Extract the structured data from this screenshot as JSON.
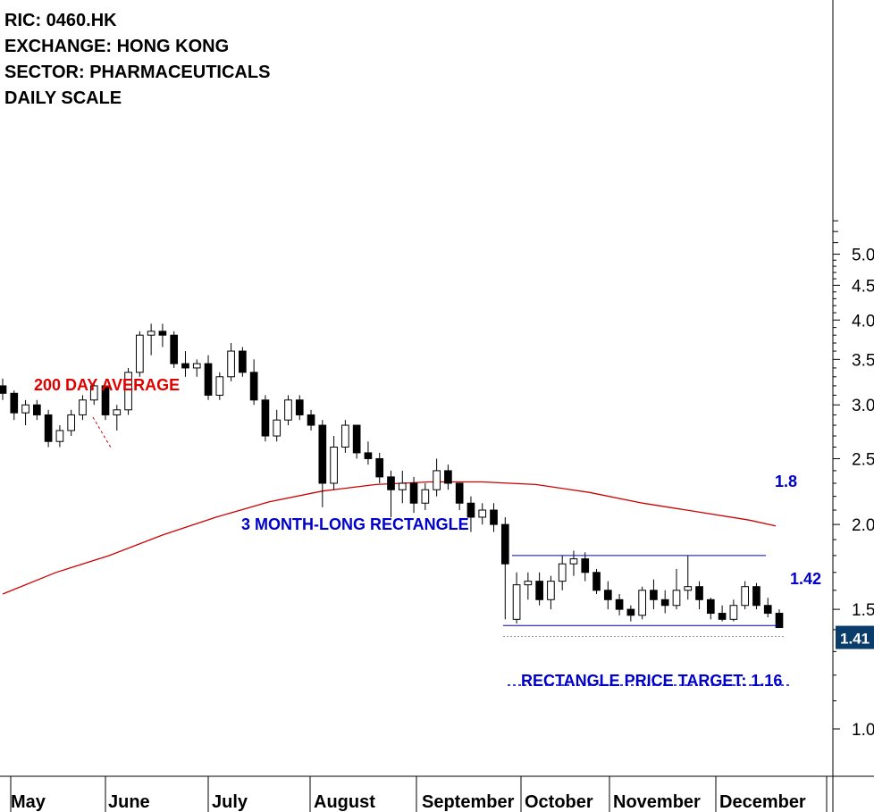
{
  "info": {
    "ric": "RIC: 0460.HK",
    "exchange": "EXCHANGE: HONG KONG",
    "sector": "SECTOR: PHARMACEUTICALS",
    "scale": "DAILY SCALE"
  },
  "annotations": {
    "ma_label": "200 DAY AVERAGE",
    "rectangle_label": "3 MONTH-LONG RECTANGLE",
    "target_label": "RECTANGLE PRICE TARGET: 1.16",
    "upper_level": "1.8",
    "lower_level": "1.42",
    "last_price": "1.41"
  },
  "colors": {
    "ma_line": "#cc0000",
    "annotation_blue": "#0000cc",
    "last_badge": "#0b3d6b",
    "candle": "#000000"
  },
  "chart_data": {
    "type": "candlestick",
    "scale": "log",
    "ylim": [
      0.85,
      5.6
    ],
    "y_ticks": [
      "1.0",
      "1.5",
      "2.0",
      "2.5",
      "3.0",
      "3.5",
      "4.0",
      "4.5",
      "5.0"
    ],
    "x_ticks": [
      "May",
      "June",
      "July",
      "August",
      "September",
      "October",
      "November",
      "December"
    ],
    "rectangle_upper": 1.8,
    "rectangle_lower": 1.42,
    "price_target": 1.16,
    "last_price": 1.41,
    "ma200": [
      [
        0,
        1.58
      ],
      [
        12,
        1.7
      ],
      [
        24,
        1.8
      ],
      [
        36,
        1.93
      ],
      [
        48,
        2.05
      ],
      [
        60,
        2.16
      ],
      [
        72,
        2.24
      ],
      [
        84,
        2.29
      ],
      [
        96,
        2.31
      ],
      [
        108,
        2.31
      ],
      [
        120,
        2.29
      ],
      [
        132,
        2.23
      ],
      [
        144,
        2.15
      ],
      [
        156,
        2.09
      ],
      [
        168,
        2.03
      ],
      [
        174,
        1.99
      ]
    ],
    "candles": [
      [
        3.2,
        3.28,
        3.05,
        3.12
      ],
      [
        3.12,
        3.15,
        2.85,
        2.92
      ],
      [
        2.92,
        3.05,
        2.8,
        3.0
      ],
      [
        3.0,
        3.05,
        2.85,
        2.9
      ],
      [
        2.9,
        2.95,
        2.6,
        2.65
      ],
      [
        2.65,
        2.8,
        2.6,
        2.75
      ],
      [
        2.75,
        2.95,
        2.7,
        2.9
      ],
      [
        2.9,
        3.1,
        2.85,
        3.05
      ],
      [
        3.05,
        3.25,
        3.0,
        3.2
      ],
      [
        3.2,
        3.2,
        2.85,
        2.9
      ],
      [
        2.9,
        3.0,
        2.75,
        2.95
      ],
      [
        2.95,
        3.4,
        2.9,
        3.35
      ],
      [
        3.35,
        3.85,
        3.3,
        3.8
      ],
      [
        3.8,
        3.95,
        3.55,
        3.85
      ],
      [
        3.85,
        3.95,
        3.65,
        3.8
      ],
      [
        3.8,
        3.85,
        3.4,
        3.45
      ],
      [
        3.45,
        3.6,
        3.3,
        3.4
      ],
      [
        3.4,
        3.5,
        3.3,
        3.45
      ],
      [
        3.45,
        3.55,
        3.05,
        3.1
      ],
      [
        3.1,
        3.35,
        3.05,
        3.3
      ],
      [
        3.3,
        3.7,
        3.25,
        3.6
      ],
      [
        3.6,
        3.65,
        3.3,
        3.35
      ],
      [
        3.35,
        3.5,
        3.0,
        3.05
      ],
      [
        3.05,
        3.1,
        2.65,
        2.7
      ],
      [
        2.7,
        2.95,
        2.65,
        2.85
      ],
      [
        2.85,
        3.1,
        2.8,
        3.05
      ],
      [
        3.05,
        3.1,
        2.85,
        2.9
      ],
      [
        2.9,
        2.95,
        2.75,
        2.8
      ],
      [
        2.8,
        2.85,
        2.12,
        2.3
      ],
      [
        2.3,
        2.7,
        2.25,
        2.6
      ],
      [
        2.6,
        2.85,
        2.55,
        2.8
      ],
      [
        2.8,
        2.8,
        2.5,
        2.55
      ],
      [
        2.55,
        2.65,
        2.45,
        2.5
      ],
      [
        2.5,
        2.55,
        2.3,
        2.35
      ],
      [
        2.35,
        2.4,
        2.05,
        2.25
      ],
      [
        2.25,
        2.4,
        2.15,
        2.3
      ],
      [
        2.3,
        2.35,
        2.08,
        2.15
      ],
      [
        2.15,
        2.3,
        2.1,
        2.25
      ],
      [
        2.25,
        2.5,
        2.2,
        2.4
      ],
      [
        2.4,
        2.45,
        2.25,
        2.3
      ],
      [
        2.3,
        2.3,
        2.1,
        2.15
      ],
      [
        2.15,
        2.2,
        1.95,
        2.05
      ],
      [
        2.05,
        2.15,
        2.0,
        2.1
      ],
      [
        2.1,
        2.15,
        1.95,
        2.0
      ],
      [
        2.0,
        2.05,
        1.45,
        1.75
      ],
      [
        1.45,
        1.7,
        1.43,
        1.63
      ],
      [
        1.63,
        1.7,
        1.55,
        1.65
      ],
      [
        1.65,
        1.7,
        1.52,
        1.55
      ],
      [
        1.55,
        1.68,
        1.5,
        1.65
      ],
      [
        1.65,
        1.8,
        1.6,
        1.75
      ],
      [
        1.75,
        1.83,
        1.68,
        1.78
      ],
      [
        1.78,
        1.82,
        1.65,
        1.7
      ],
      [
        1.7,
        1.72,
        1.58,
        1.6
      ],
      [
        1.6,
        1.65,
        1.5,
        1.55
      ],
      [
        1.55,
        1.58,
        1.47,
        1.5
      ],
      [
        1.5,
        1.52,
        1.44,
        1.47
      ],
      [
        1.47,
        1.62,
        1.45,
        1.6
      ],
      [
        1.6,
        1.66,
        1.5,
        1.55
      ],
      [
        1.55,
        1.6,
        1.48,
        1.52
      ],
      [
        1.52,
        1.72,
        1.5,
        1.6
      ],
      [
        1.6,
        1.8,
        1.55,
        1.62
      ],
      [
        1.62,
        1.65,
        1.5,
        1.55
      ],
      [
        1.55,
        1.56,
        1.45,
        1.48
      ],
      [
        1.48,
        1.52,
        1.44,
        1.45
      ],
      [
        1.45,
        1.55,
        1.44,
        1.52
      ],
      [
        1.52,
        1.65,
        1.5,
        1.62
      ],
      [
        1.62,
        1.64,
        1.5,
        1.52
      ],
      [
        1.52,
        1.56,
        1.46,
        1.48
      ],
      [
        1.48,
        1.5,
        1.41,
        1.41
      ]
    ]
  }
}
